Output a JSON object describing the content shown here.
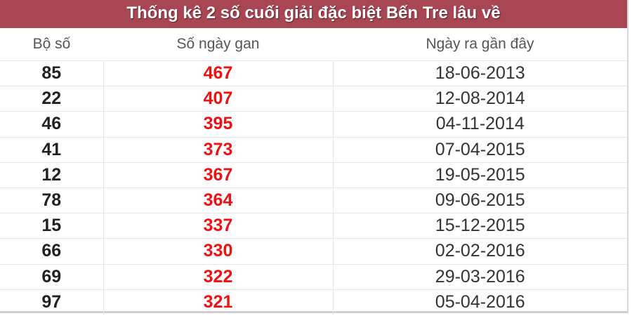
{
  "title": "Thống kê 2 số cuối giải đặc biệt Bến Tre lâu về",
  "headers": [
    "Bộ số",
    "Số ngày gan",
    "Ngày ra gần đây"
  ],
  "rows": [
    {
      "number": "85",
      "days": "467",
      "date": "18-06-2013"
    },
    {
      "number": "22",
      "days": "407",
      "date": "12-08-2014"
    },
    {
      "number": "46",
      "days": "395",
      "date": "04-11-2014"
    },
    {
      "number": "41",
      "days": "373",
      "date": "07-04-2015"
    },
    {
      "number": "12",
      "days": "367",
      "date": "19-05-2015"
    },
    {
      "number": "78",
      "days": "364",
      "date": "09-06-2015"
    },
    {
      "number": "15",
      "days": "337",
      "date": "15-12-2015"
    },
    {
      "number": "66",
      "days": "330",
      "date": "02-02-2016"
    },
    {
      "number": "69",
      "days": "322",
      "date": "29-03-2016"
    },
    {
      "number": "97",
      "days": "321",
      "date": "05-04-2016"
    }
  ],
  "colors": {
    "header_bg": "#a84653",
    "days_text": "#ee1111"
  }
}
